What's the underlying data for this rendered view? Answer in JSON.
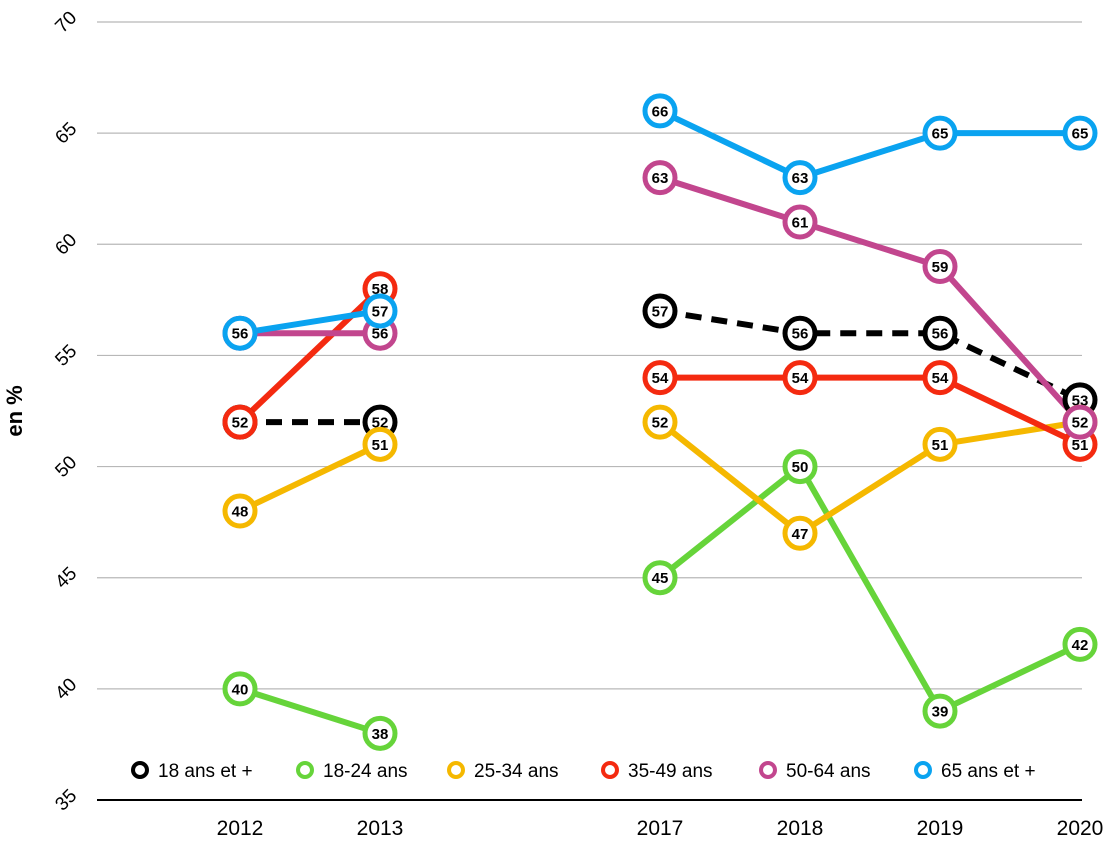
{
  "chart_data": {
    "type": "line",
    "ylabel": "en %",
    "xlabel": "",
    "ylim": [
      35,
      70
    ],
    "yticks": [
      35,
      40,
      45,
      50,
      55,
      60,
      65,
      70
    ],
    "x": [
      "2012",
      "2013",
      "2017",
      "2018",
      "2019",
      "2020"
    ],
    "x_gap_after_index": 1,
    "grid": true,
    "legend_placement": "bottom",
    "series": [
      {
        "name": "18 ans et +",
        "color": "#000000",
        "dashed": true,
        "values": [
          52,
          52,
          57,
          56,
          56,
          53
        ]
      },
      {
        "name": "18-24 ans",
        "color": "#66d43a",
        "dashed": false,
        "values": [
          40,
          38,
          45,
          50,
          39,
          42
        ]
      },
      {
        "name": "25-34 ans",
        "color": "#f5b800",
        "dashed": false,
        "values": [
          48,
          51,
          52,
          47,
          51,
          52
        ]
      },
      {
        "name": "35-49 ans",
        "color": "#f42a10",
        "dashed": false,
        "values": [
          52,
          58,
          54,
          54,
          54,
          51
        ]
      },
      {
        "name": "50-64 ans",
        "color": "#c2468e",
        "dashed": false,
        "values": [
          56,
          56,
          63,
          61,
          59,
          52
        ]
      },
      {
        "name": "65 ans et +",
        "color": "#0aa3f0",
        "dashed": false,
        "values": [
          56,
          57,
          66,
          63,
          65,
          65
        ]
      }
    ]
  }
}
